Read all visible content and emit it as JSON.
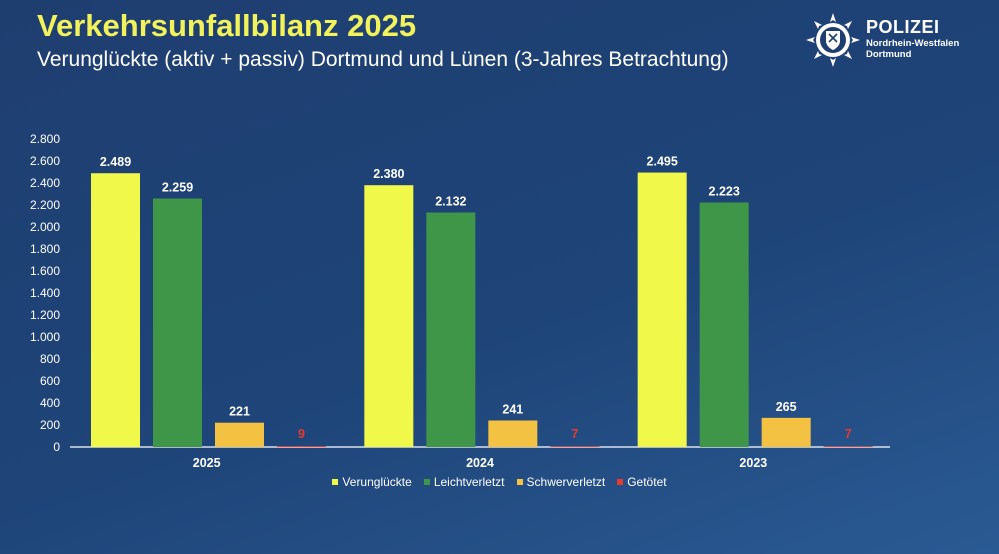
{
  "header": {
    "title": "Verkehrsunfallbilanz 2025",
    "subtitle": "Verunglückte (aktiv + passiv) Dortmund und Lünen (3-Jahres Betrachtung)"
  },
  "logo": {
    "title": "POLIZEI",
    "line1": "Nordrhein-Westfalen",
    "line2": "Dortmund",
    "icon": "police-star-emblem-icon"
  },
  "colors": {
    "background": "#1f3e70",
    "title": "#f2f25a",
    "verunglueckte": "#f0f84a",
    "leichtverletzt": "#3f9548",
    "schwerverletzt": "#f4c243",
    "getoetet": "#e8392e",
    "axis": "#ffffff"
  },
  "chart_data": {
    "type": "bar",
    "categories": [
      "2025",
      "2024",
      "2023"
    ],
    "series": [
      {
        "name": "Verunglückte",
        "values": [
          2489,
          2380,
          2495
        ],
        "labels": [
          "2.489",
          "2.380",
          "2.495"
        ],
        "color": "#f0f84a"
      },
      {
        "name": "Leichtverletzt",
        "values": [
          2259,
          2132,
          2223
        ],
        "labels": [
          "2.259",
          "2.132",
          "2.223"
        ],
        "color": "#3f9548"
      },
      {
        "name": "Schwerverletzt",
        "values": [
          221,
          241,
          265
        ],
        "labels": [
          "221",
          "241",
          "265"
        ],
        "color": "#f4c243"
      },
      {
        "name": "Getötet",
        "values": [
          9,
          7,
          7
        ],
        "labels": [
          "9",
          "7",
          "7"
        ],
        "color": "#e8392e"
      }
    ],
    "ylim": [
      0,
      2800
    ],
    "yticks": [
      0,
      200,
      400,
      600,
      800,
      1000,
      1200,
      1400,
      1600,
      1800,
      2000,
      2200,
      2400,
      2600,
      2800
    ],
    "ytick_labels": [
      "0",
      "200",
      "400",
      "600",
      "800",
      "1.000",
      "1.200",
      "1.400",
      "1.600",
      "1.800",
      "2.000",
      "2.200",
      "2.400",
      "2.600",
      "2.800"
    ],
    "grid": false,
    "legend": "bottom"
  }
}
